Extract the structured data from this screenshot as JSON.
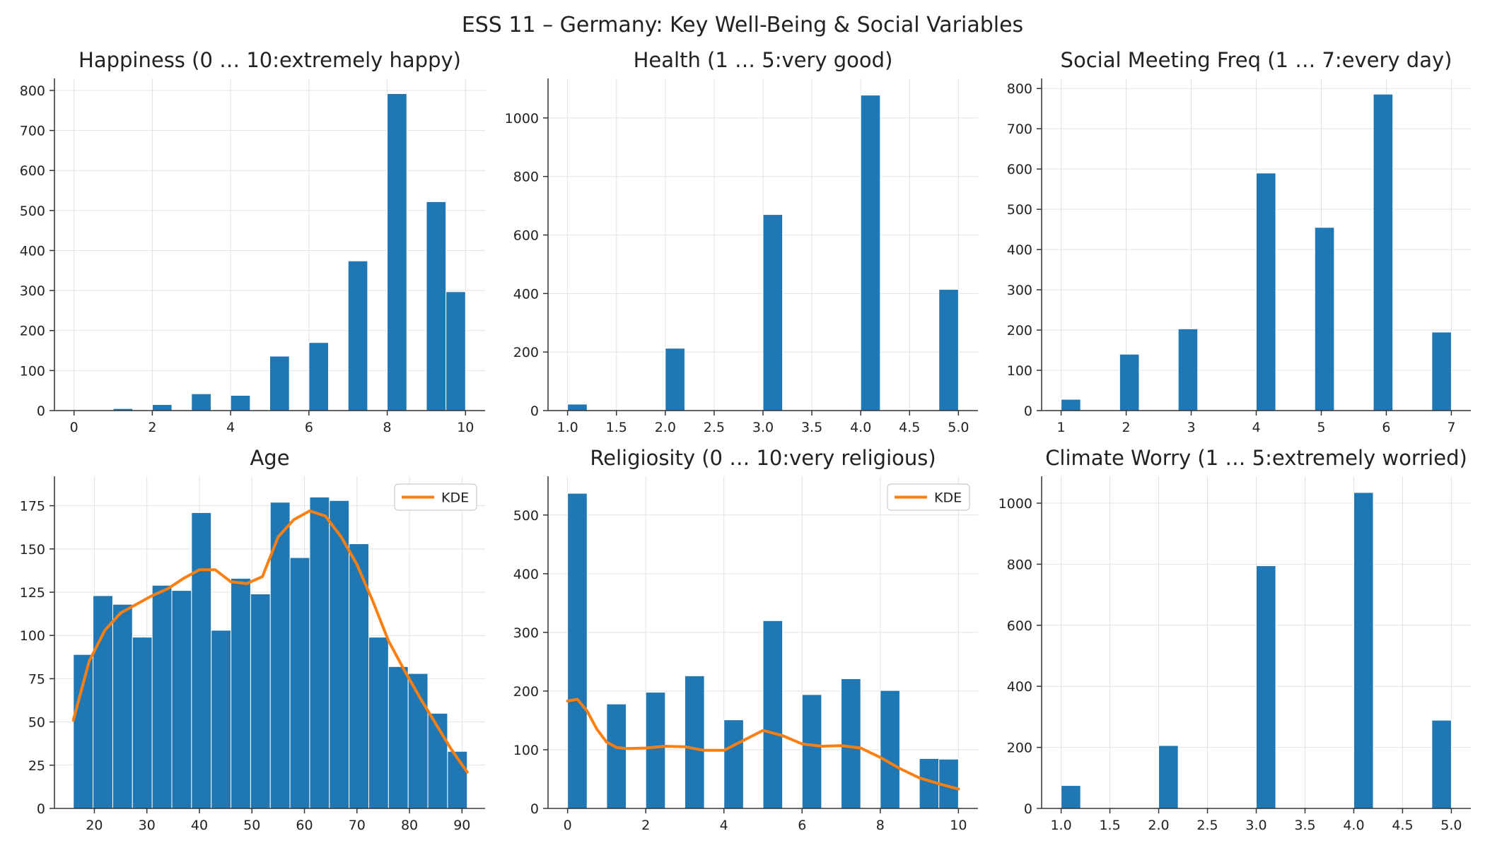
{
  "figure": {
    "suptitle": "ESS 11 – Germany: Key Well-Being & Social Variables"
  },
  "chart_data": [
    {
      "type": "bar",
      "title": "Happiness (0 … 10:extremely happy)",
      "xlim": [
        -0.5,
        10.5
      ],
      "ylim": [
        0,
        830
      ],
      "xticks": [
        0,
        2,
        4,
        6,
        8,
        10
      ],
      "yticks": [
        0,
        100,
        200,
        300,
        400,
        500,
        600,
        700,
        800
      ],
      "bins": [
        {
          "x0": 0.0,
          "x1": 0.5,
          "y": 0
        },
        {
          "x0": 1.0,
          "x1": 1.5,
          "y": 5
        },
        {
          "x0": 2.0,
          "x1": 2.5,
          "y": 15
        },
        {
          "x0": 3.0,
          "x1": 3.5,
          "y": 42
        },
        {
          "x0": 4.0,
          "x1": 4.5,
          "y": 38
        },
        {
          "x0": 5.0,
          "x1": 5.5,
          "y": 136
        },
        {
          "x0": 6.0,
          "x1": 6.5,
          "y": 170
        },
        {
          "x0": 7.0,
          "x1": 7.5,
          "y": 374
        },
        {
          "x0": 8.0,
          "x1": 8.5,
          "y": 792
        },
        {
          "x0": 9.0,
          "x1": 9.5,
          "y": 522
        },
        {
          "x0": 9.5,
          "x1": 10.0,
          "y": 297
        }
      ]
    },
    {
      "type": "bar",
      "title": "Health (1 … 5:very good)",
      "xlim": [
        0.8,
        5.2
      ],
      "ylim": [
        0,
        1135
      ],
      "xticks": [
        1.0,
        1.5,
        2.0,
        2.5,
        3.0,
        3.5,
        4.0,
        4.5,
        5.0
      ],
      "xtick_labels": [
        "1.0",
        "1.5",
        "2.0",
        "2.5",
        "3.0",
        "3.5",
        "4.0",
        "4.5",
        "5.0"
      ],
      "yticks": [
        0,
        200,
        400,
        600,
        800,
        1000
      ],
      "bins": [
        {
          "x0": 1.0,
          "x1": 1.2,
          "y": 22
        },
        {
          "x0": 2.0,
          "x1": 2.2,
          "y": 213
        },
        {
          "x0": 3.0,
          "x1": 3.2,
          "y": 670
        },
        {
          "x0": 4.0,
          "x1": 4.2,
          "y": 1078
        },
        {
          "x0": 4.8,
          "x1": 5.0,
          "y": 414
        }
      ]
    },
    {
      "type": "bar",
      "title": "Social Meeting Freq (1 … 7:every day)",
      "xlim": [
        0.7,
        7.3
      ],
      "ylim": [
        0,
        825
      ],
      "xticks": [
        1,
        2,
        3,
        4,
        5,
        6,
        7
      ],
      "yticks": [
        0,
        100,
        200,
        300,
        400,
        500,
        600,
        700,
        800
      ],
      "bins": [
        {
          "x0": 1.0,
          "x1": 1.3,
          "y": 28
        },
        {
          "x0": 1.9,
          "x1": 2.2,
          "y": 140
        },
        {
          "x0": 2.8,
          "x1": 3.1,
          "y": 203
        },
        {
          "x0": 4.0,
          "x1": 4.3,
          "y": 590
        },
        {
          "x0": 4.9,
          "x1": 5.2,
          "y": 455
        },
        {
          "x0": 5.8,
          "x1": 6.1,
          "y": 786
        },
        {
          "x0": 6.7,
          "x1": 7.0,
          "y": 195
        }
      ]
    },
    {
      "type": "bar",
      "title": "Age",
      "xlim": [
        12.4,
        94.4
      ],
      "ylim": [
        0,
        192
      ],
      "xticks": [
        20,
        30,
        40,
        50,
        60,
        70,
        80,
        90
      ],
      "yticks": [
        0,
        25,
        50,
        75,
        100,
        125,
        150,
        175
      ],
      "legend": {
        "label": "KDE",
        "position": "upper right"
      },
      "bins": [
        {
          "x0": 16.0,
          "x1": 19.75,
          "y": 89
        },
        {
          "x0": 19.75,
          "x1": 23.5,
          "y": 123
        },
        {
          "x0": 23.5,
          "x1": 27.25,
          "y": 118
        },
        {
          "x0": 27.25,
          "x1": 31.0,
          "y": 99
        },
        {
          "x0": 31.0,
          "x1": 34.75,
          "y": 129
        },
        {
          "x0": 34.75,
          "x1": 38.5,
          "y": 126
        },
        {
          "x0": 38.5,
          "x1": 42.25,
          "y": 171
        },
        {
          "x0": 42.25,
          "x1": 46.0,
          "y": 103
        },
        {
          "x0": 46.0,
          "x1": 49.75,
          "y": 133
        },
        {
          "x0": 49.75,
          "x1": 53.5,
          "y": 124
        },
        {
          "x0": 53.5,
          "x1": 57.25,
          "y": 177
        },
        {
          "x0": 57.25,
          "x1": 61.0,
          "y": 145
        },
        {
          "x0": 61.0,
          "x1": 64.75,
          "y": 180
        },
        {
          "x0": 64.75,
          "x1": 68.5,
          "y": 178
        },
        {
          "x0": 68.5,
          "x1": 72.25,
          "y": 153
        },
        {
          "x0": 72.25,
          "x1": 76.0,
          "y": 99
        },
        {
          "x0": 76.0,
          "x1": 79.75,
          "y": 82
        },
        {
          "x0": 79.75,
          "x1": 83.5,
          "y": 78
        },
        {
          "x0": 83.5,
          "x1": 87.25,
          "y": 55
        },
        {
          "x0": 87.25,
          "x1": 91.0,
          "y": 33
        }
      ],
      "kde": {
        "x": [
          16,
          19,
          22,
          25,
          28,
          31,
          34,
          37,
          40,
          43,
          46,
          49,
          52,
          55,
          58,
          61,
          64,
          67,
          70,
          73,
          76,
          79,
          82,
          85,
          88,
          91
        ],
        "y": [
          51,
          85,
          103,
          113,
          118,
          123,
          127,
          133,
          138,
          138,
          131,
          130,
          134,
          157,
          167,
          172,
          169,
          157,
          141,
          120,
          97,
          80,
          64,
          49,
          34,
          21
        ]
      }
    },
    {
      "type": "bar",
      "title": "Religiosity (0 … 10:very religious)",
      "xlim": [
        -0.5,
        10.5
      ],
      "ylim": [
        0,
        566
      ],
      "xticks": [
        0,
        2,
        4,
        6,
        8,
        10
      ],
      "yticks": [
        0,
        100,
        200,
        300,
        400,
        500
      ],
      "legend": {
        "label": "KDE",
        "position": "upper right"
      },
      "bins": [
        {
          "x0": 0.0,
          "x1": 0.5,
          "y": 537
        },
        {
          "x0": 1.0,
          "x1": 1.5,
          "y": 178
        },
        {
          "x0": 2.0,
          "x1": 2.5,
          "y": 198
        },
        {
          "x0": 3.0,
          "x1": 3.5,
          "y": 226
        },
        {
          "x0": 4.0,
          "x1": 4.5,
          "y": 151
        },
        {
          "x0": 5.0,
          "x1": 5.5,
          "y": 320
        },
        {
          "x0": 6.0,
          "x1": 6.5,
          "y": 194
        },
        {
          "x0": 7.0,
          "x1": 7.5,
          "y": 221
        },
        {
          "x0": 8.0,
          "x1": 8.5,
          "y": 201
        },
        {
          "x0": 9.0,
          "x1": 9.5,
          "y": 85
        },
        {
          "x0": 9.5,
          "x1": 10.0,
          "y": 84
        }
      ],
      "kde": {
        "x": [
          0,
          0.25,
          0.5,
          0.75,
          1.0,
          1.25,
          1.5,
          2.0,
          2.5,
          3.0,
          3.5,
          4.0,
          4.5,
          5.0,
          5.5,
          6.0,
          6.5,
          7.0,
          7.5,
          8.0,
          8.5,
          9.0,
          9.5,
          10.0
        ],
        "y": [
          183,
          186,
          166,
          135,
          113,
          104,
          102,
          103,
          106,
          105,
          99,
          99,
          116,
          133,
          124,
          110,
          106,
          107,
          103,
          87,
          68,
          52,
          42,
          33
        ]
      }
    },
    {
      "type": "bar",
      "title": "Climate Worry (1 … 5:extremely worried)",
      "xlim": [
        0.8,
        5.2
      ],
      "ylim": [
        0,
        1088
      ],
      "xticks": [
        1.0,
        1.5,
        2.0,
        2.5,
        3.0,
        3.5,
        4.0,
        4.5,
        5.0
      ],
      "xtick_labels": [
        "1.0",
        "1.5",
        "2.0",
        "2.5",
        "3.0",
        "3.5",
        "4.0",
        "4.5",
        "5.0"
      ],
      "yticks": [
        0,
        200,
        400,
        600,
        800,
        1000
      ],
      "bins": [
        {
          "x0": 1.0,
          "x1": 1.2,
          "y": 75
        },
        {
          "x0": 2.0,
          "x1": 2.2,
          "y": 206
        },
        {
          "x0": 3.0,
          "x1": 3.2,
          "y": 795
        },
        {
          "x0": 4.0,
          "x1": 4.2,
          "y": 1035
        },
        {
          "x0": 4.8,
          "x1": 5.0,
          "y": 289
        }
      ]
    }
  ],
  "colors": {
    "bar": "#1f77b4",
    "kde": "#ff7f0e",
    "grid": "#e2e2e2",
    "axis": "#333333",
    "text": "#222222"
  }
}
